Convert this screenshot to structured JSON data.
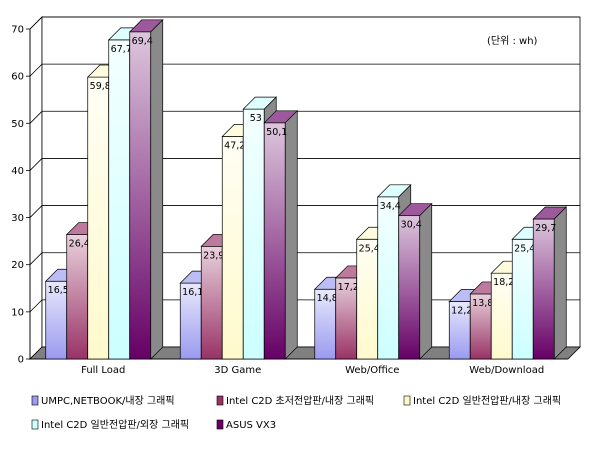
{
  "chart_data": {
    "type": "bar",
    "unit_note": "(단위 : wh)",
    "categories": [
      "Full Load",
      "3D Game",
      "Web/Office",
      "Web/Download"
    ],
    "ylim": [
      0,
      70
    ],
    "yticks": [
      0,
      10,
      20,
      30,
      40,
      50,
      60,
      70
    ],
    "grid": true,
    "legend_position": "bottom",
    "series": [
      {
        "name": "UMPC,NETBOOK/내장 그래픽",
        "values": [
          16.5,
          16.1,
          14.8,
          12.2
        ],
        "labels": [
          "16,5",
          "16,1",
          "14,8",
          "12,2"
        ],
        "color": "#9a9af0"
      },
      {
        "name": "Intel C2D 초저전압판/내장 그래픽",
        "values": [
          26.4,
          23.9,
          17.2,
          13.8
        ],
        "labels": [
          "26,4",
          "23,9",
          "17,2",
          "13,8"
        ],
        "color": "#993366"
      },
      {
        "name": "Intel C2D 일반전압판/내장 그래픽",
        "values": [
          59.8,
          47.2,
          25.4,
          18.2
        ],
        "labels": [
          "59,8",
          "47,2",
          "25,4",
          "18,2"
        ],
        "color": "#fffacc"
      },
      {
        "name": "Intel C2D 일반전압판/외장 그래픽",
        "values": [
          67.7,
          53,
          34.4,
          25.4
        ],
        "labels": [
          "67,7",
          "53",
          "34,4",
          "25,4"
        ],
        "color": "#ccffff"
      },
      {
        "name": "ASUS VX3",
        "values": [
          69.4,
          50.1,
          30.4,
          29.7
        ],
        "labels": [
          "69,4",
          "50,1",
          "30,4",
          "29,7"
        ],
        "color": "#660066"
      }
    ]
  }
}
